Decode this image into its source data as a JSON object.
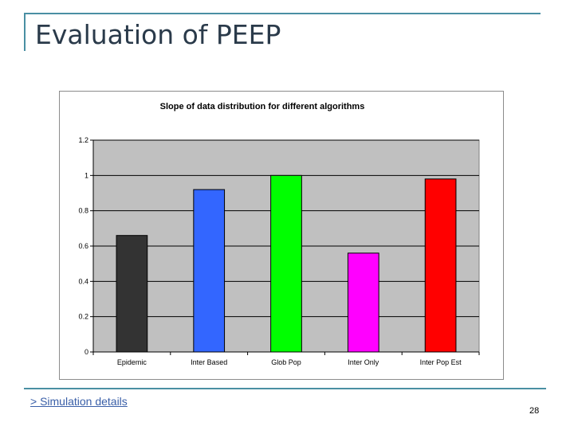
{
  "slide": {
    "title": "Evaluation of PEEP",
    "link_text": "> Simulation details",
    "page_number": "28",
    "accent_color": "#4a8fa3"
  },
  "chart_data": {
    "type": "bar",
    "title": "Slope of data distribution for different algorithms",
    "xlabel": "",
    "ylabel": "",
    "categories": [
      "Epidemic",
      "Inter Based",
      "Glob Pop",
      "Inter Only",
      "Inter Pop Est"
    ],
    "values": [
      0.66,
      0.92,
      1.0,
      0.56,
      0.98
    ],
    "colors": [
      "#333333",
      "#3366ff",
      "#00ff00",
      "#ff00ff",
      "#ff0000"
    ],
    "ylim": [
      0,
      1.2
    ],
    "yticks": [
      0,
      0.2,
      0.4,
      0.6,
      0.8,
      1,
      1.2
    ],
    "ytick_labels": [
      "0",
      "0.2",
      "0.4",
      "0.6",
      "0.8",
      "1",
      "1.2"
    ],
    "grid": true,
    "legend": "none",
    "plot_background": "#c0c0c0"
  }
}
